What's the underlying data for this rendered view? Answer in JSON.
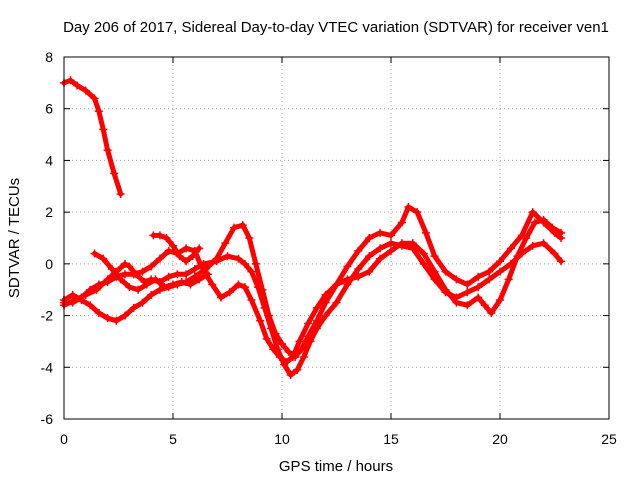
{
  "chart_data": {
    "type": "scatter",
    "title": "Day 206 of 2017, Sidereal Day-to-day VTEC variation (SDTVAR) for receiver ven1",
    "xlabel": "GPS time / hours",
    "ylabel": "SDTVAR / TECUs",
    "xlim": [
      0,
      25
    ],
    "ylim": [
      -6,
      8
    ],
    "xticks": [
      0,
      5,
      10,
      15,
      20,
      25
    ],
    "yticks": [
      -6,
      -4,
      -2,
      0,
      2,
      4,
      6,
      8
    ],
    "grid": true,
    "marker": "+",
    "series": [
      {
        "name": "track-a",
        "color": "#ff0000",
        "x": [
          0.0,
          0.3,
          0.6,
          1.0,
          1.4,
          1.6,
          1.8,
          2.0,
          2.3,
          2.6
        ],
        "y": [
          7.0,
          7.1,
          6.9,
          6.7,
          6.4,
          5.9,
          5.2,
          4.4,
          3.5,
          2.7
        ]
      },
      {
        "name": "track-b",
        "color": "#ff0000",
        "x": [
          0.0,
          0.5,
          1.0,
          1.5,
          2.0,
          2.4,
          2.8,
          3.0,
          3.3,
          3.7,
          4.0,
          4.4,
          4.8,
          5.2,
          5.6,
          6.0,
          6.4,
          7.0,
          7.5,
          8.0,
          8.3,
          8.6,
          8.9,
          9.2,
          9.5,
          9.8,
          10.1,
          10.4,
          10.7,
          11.0,
          11.3,
          11.6,
          12.0,
          12.5,
          13.0,
          13.5,
          14.0,
          14.5,
          15.0,
          15.5,
          16.0,
          16.5,
          17.0,
          17.5,
          18.0,
          18.5,
          19.0,
          19.5,
          20.0,
          20.5,
          21.0,
          21.5,
          22.0,
          22.5,
          22.8
        ],
        "y": [
          -1.6,
          -1.4,
          -1.2,
          -1.0,
          -0.6,
          -0.3,
          0.0,
          -0.1,
          -0.4,
          -0.7,
          -0.6,
          -0.7,
          -0.5,
          -0.4,
          -0.4,
          -0.2,
          0.0,
          0.1,
          0.3,
          0.2,
          0.0,
          -0.3,
          -0.9,
          -1.7,
          -2.5,
          -3.3,
          -3.9,
          -4.3,
          -4.1,
          -3.6,
          -3.0,
          -2.5,
          -2.0,
          -1.5,
          -0.8,
          -0.2,
          0.3,
          0.6,
          0.8,
          0.7,
          0.6,
          0.0,
          -0.6,
          -1.1,
          -1.3,
          -1.1,
          -0.9,
          -0.6,
          -0.3,
          0.0,
          0.4,
          0.7,
          0.8,
          0.4,
          0.1
        ]
      },
      {
        "name": "track-c",
        "color": "#ff0000",
        "x": [
          0.0,
          0.4,
          0.8,
          1.2,
          1.6,
          2.0,
          2.4,
          2.8,
          3.2,
          3.6,
          4.0,
          4.4,
          4.8,
          5.2,
          5.6,
          6.0,
          6.5,
          7.0,
          7.4,
          7.8,
          8.2,
          8.5,
          8.8,
          9.1,
          9.4,
          9.7,
          10.0,
          10.3,
          10.6,
          10.9,
          11.2,
          11.6,
          12.0,
          12.5,
          13.0,
          13.5,
          14.0,
          14.5,
          15.0,
          15.5,
          15.8,
          16.2,
          16.6,
          17.0,
          17.5,
          18.0,
          18.5,
          19.0,
          19.5,
          20.0,
          20.5,
          21.0,
          21.5,
          22.0,
          22.5,
          22.8
        ],
        "y": [
          -1.4,
          -1.2,
          -1.4,
          -1.6,
          -1.9,
          -2.1,
          -2.2,
          -2.0,
          -1.7,
          -1.5,
          -1.2,
          -1.0,
          -0.9,
          -0.8,
          -0.7,
          -0.5,
          -0.2,
          0.2,
          0.8,
          1.4,
          1.5,
          1.0,
          0.0,
          -1.0,
          -2.0,
          -2.7,
          -3.1,
          -3.4,
          -3.6,
          -3.3,
          -2.8,
          -2.2,
          -1.5,
          -0.8,
          -0.1,
          0.5,
          1.0,
          1.2,
          1.1,
          1.6,
          2.2,
          2.0,
          1.2,
          0.3,
          -0.3,
          -0.6,
          -0.8,
          -0.5,
          -0.3,
          0.1,
          0.6,
          1.1,
          2.0,
          1.6,
          1.2,
          1.0
        ]
      },
      {
        "name": "track-d",
        "color": "#ff0000",
        "x": [
          0.0,
          0.4,
          0.8,
          1.2,
          1.6,
          2.0,
          2.4,
          2.8,
          3.2,
          3.6,
          4.0,
          4.4,
          4.8,
          5.2,
          5.6,
          6.0,
          6.3,
          6.8,
          7.2,
          7.6,
          8.0,
          8.3,
          8.6,
          9.0,
          9.3,
          9.6,
          9.9,
          10.2,
          10.5,
          10.8,
          11.2,
          11.6,
          12.0,
          12.5,
          13.0,
          13.5,
          14.0,
          14.5,
          15.0,
          15.5,
          16.0,
          16.5,
          17.0,
          17.5,
          18.0,
          18.5,
          19.0,
          19.3,
          19.6,
          20.0,
          20.4,
          20.8,
          21.2,
          21.6,
          22.0,
          22.4,
          22.8
        ],
        "y": [
          -1.5,
          -1.5,
          -1.3,
          -1.0,
          -0.8,
          -0.7,
          -0.5,
          -0.4,
          -0.4,
          -0.3,
          -0.1,
          0.2,
          0.5,
          0.4,
          0.6,
          0.5,
          -0.1,
          -0.8,
          -1.3,
          -1.1,
          -0.8,
          -0.9,
          -1.4,
          -2.2,
          -2.9,
          -3.3,
          -3.6,
          -3.8,
          -3.6,
          -3.0,
          -2.3,
          -1.7,
          -1.2,
          -0.8,
          -0.6,
          -0.5,
          -0.3,
          0.2,
          0.5,
          0.8,
          0.8,
          0.4,
          -0.3,
          -1.0,
          -1.5,
          -1.6,
          -1.3,
          -1.6,
          -1.9,
          -1.4,
          -0.6,
          0.3,
          1.0,
          1.6,
          1.7,
          1.4,
          1.2
        ]
      },
      {
        "name": "track-e",
        "color": "#ff0000",
        "x": [
          1.4,
          1.8,
          2.2,
          2.6,
          3.0,
          3.4,
          3.8,
          4.2,
          4.6,
          5.0,
          5.4,
          5.8,
          6.2,
          6.6
        ],
        "y": [
          0.4,
          0.2,
          -0.2,
          -0.6,
          -0.9,
          -1.0,
          -0.8,
          -0.6,
          -0.9,
          -0.8,
          -0.7,
          -0.8,
          -0.6,
          -0.4
        ]
      },
      {
        "name": "track-f",
        "color": "#ff0000",
        "x": [
          4.1,
          4.4,
          4.7,
          5.0,
          5.3,
          5.6,
          5.9,
          6.2
        ],
        "y": [
          1.1,
          1.1,
          1.0,
          0.7,
          0.3,
          0.1,
          0.3,
          0.6
        ]
      }
    ]
  }
}
